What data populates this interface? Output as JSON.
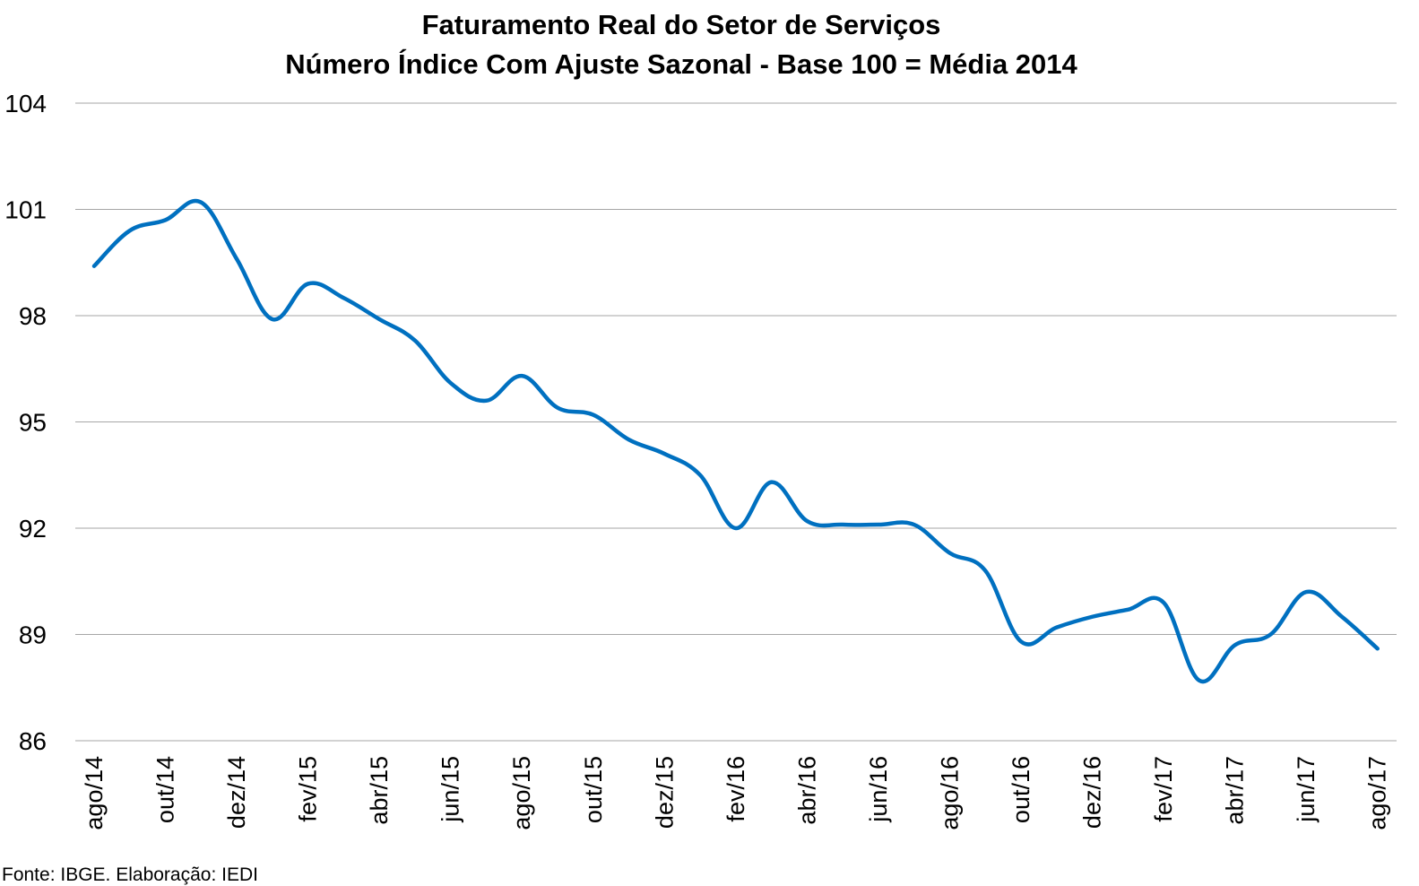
{
  "chart_data": {
    "type": "line",
    "title": "Faturamento Real do Setor de Serviços",
    "subtitle": "Número Índice Com Ajuste Sazonal - Base 100 = Média 2014",
    "xlabel": "",
    "ylabel": "",
    "ylim": [
      86,
      104
    ],
    "yticks": [
      86,
      89,
      92,
      95,
      98,
      101,
      104
    ],
    "grid": true,
    "legend": "none",
    "x": [
      "ago/14",
      "set/14",
      "out/14",
      "nov/14",
      "dez/14",
      "jan/15",
      "fev/15",
      "mar/15",
      "abr/15",
      "mai/15",
      "jun/15",
      "jul/15",
      "ago/15",
      "set/15",
      "out/15",
      "nov/15",
      "dez/15",
      "jan/16",
      "fev/16",
      "mar/16",
      "abr/16",
      "mai/16",
      "jun/16",
      "jul/16",
      "ago/16",
      "set/16",
      "out/16",
      "nov/16",
      "dez/16",
      "jan/17",
      "fev/17",
      "mar/17",
      "abr/17",
      "mai/17",
      "jun/17",
      "jul/17",
      "ago/17"
    ],
    "xtick_labels": [
      "ago/14",
      "out/14",
      "dez/14",
      "fev/15",
      "abr/15",
      "jun/15",
      "ago/15",
      "out/15",
      "dez/15",
      "fev/16",
      "abr/16",
      "jun/16",
      "ago/16",
      "out/16",
      "dez/16",
      "fev/17",
      "abr/17",
      "jun/17",
      "ago/17"
    ],
    "series": [
      {
        "name": "",
        "color": "#0070c0",
        "values": [
          99.4,
          100.4,
          100.7,
          101.2,
          99.6,
          97.9,
          98.9,
          98.5,
          97.9,
          97.3,
          96.1,
          95.6,
          96.3,
          95.4,
          95.2,
          94.5,
          94.1,
          93.5,
          92.0,
          93.3,
          92.2,
          92.1,
          92.1,
          92.1,
          91.3,
          90.8,
          88.8,
          89.2,
          89.5,
          89.7,
          89.9,
          87.7,
          88.7,
          89.0,
          90.2,
          89.5,
          88.6
        ]
      }
    ]
  },
  "source": "Fonte: IBGE. Elaboração: IEDI"
}
